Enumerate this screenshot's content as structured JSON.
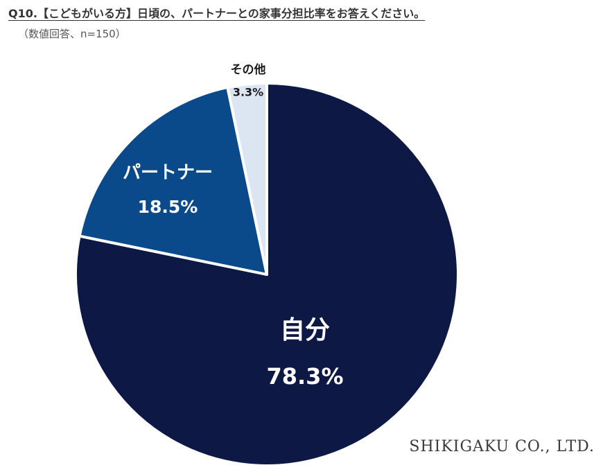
{
  "header": {
    "title": "Q10.【こどもがいる方】日頃の、パートナーとの家事分担比率をお答えください。",
    "subtitle": "（数値回答、n=150）"
  },
  "footer": {
    "credit": "SHIKIGAKU CO., LTD."
  },
  "chart_data": {
    "type": "pie",
    "slices": [
      {
        "label": "自分",
        "value": 78.3,
        "display": "78.3%",
        "color": "#0e1845",
        "text_color": "#ffffff"
      },
      {
        "label": "パートナー",
        "value": 18.5,
        "display": "18.5%",
        "color": "#0b4a8a",
        "text_color": "#ffffff"
      },
      {
        "label": "その他",
        "value": 3.3,
        "display": "3.3%",
        "color": "#dce6f2",
        "text_color": "#1a1a1a"
      }
    ],
    "start_angle": "12 o'clock",
    "direction": "clockwise",
    "slice_border_color": "#ffffff"
  }
}
